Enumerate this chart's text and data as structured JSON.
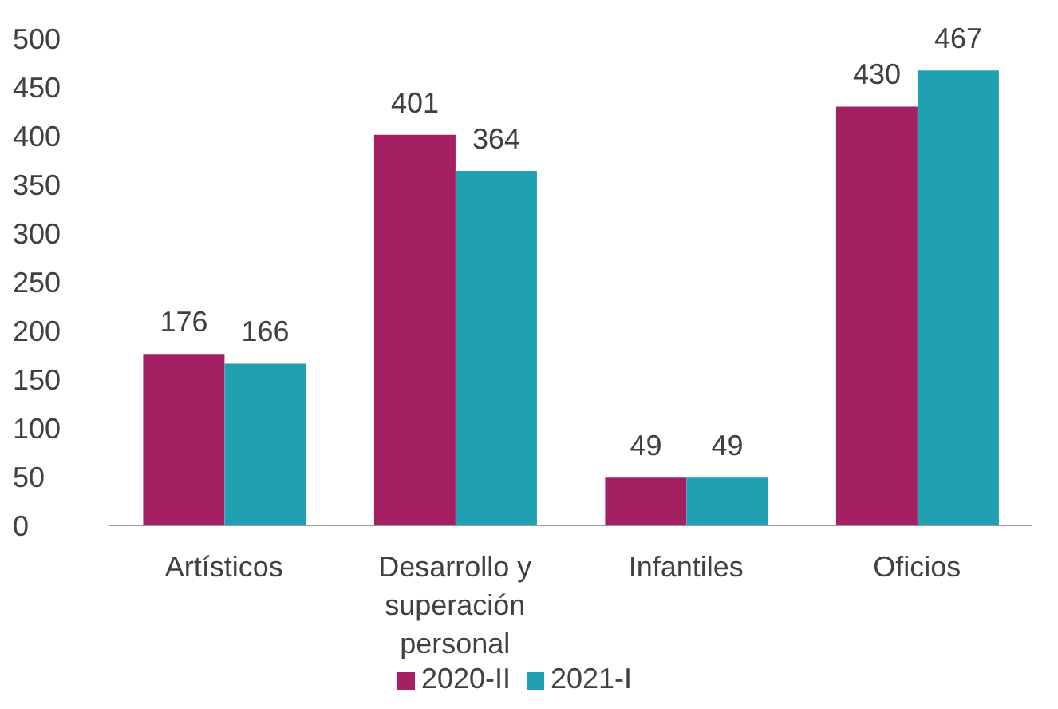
{
  "chart_data": {
    "type": "bar",
    "categories": [
      "Artísticos",
      "Desarrollo y superación personal",
      "Infantiles",
      "Oficios"
    ],
    "series": [
      {
        "name": "2020-II",
        "color": "#a51f63",
        "values": [
          176,
          401,
          49,
          430
        ]
      },
      {
        "name": "2021-I",
        "color": "#1fa1b1",
        "values": [
          166,
          364,
          49,
          467
        ]
      }
    ],
    "ylim": [
      0,
      500
    ],
    "yticks": [
      0,
      50,
      100,
      150,
      200,
      250,
      300,
      350,
      400,
      450,
      500
    ],
    "grid": false,
    "legend": "bottom",
    "data_labels": true
  }
}
